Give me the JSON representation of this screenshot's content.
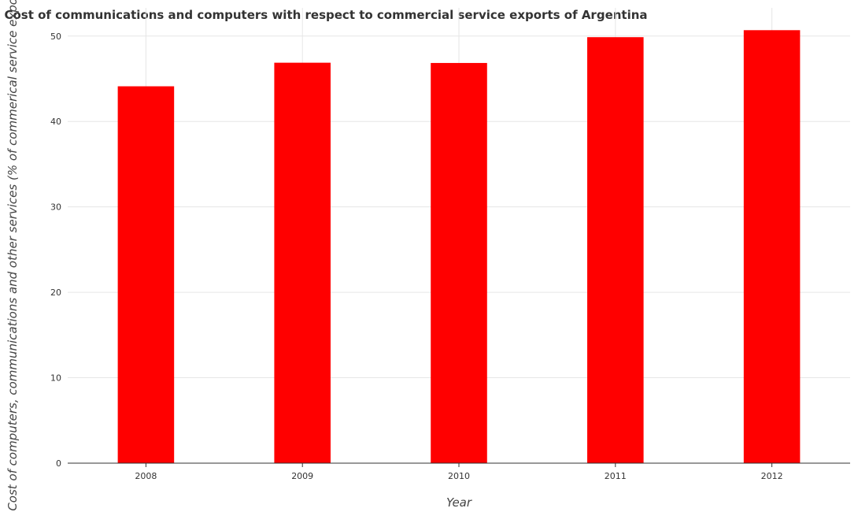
{
  "chart_data": {
    "type": "bar",
    "title": "Cost of communications and computers with respect to commercial service exports of Argentina",
    "xlabel": "Year",
    "ylabel": "Cost of computers, communications and other services (% of commerical service exports)",
    "categories": [
      "2008",
      "2009",
      "2010",
      "2011",
      "2012"
    ],
    "values": [
      44.12,
      46.88,
      46.85,
      49.87,
      50.69
    ],
    "ylim": [
      0,
      53.3
    ],
    "yticks": [
      0,
      10,
      20,
      30,
      40,
      50
    ],
    "ytick_labels": [
      "0",
      "10",
      "20",
      "30",
      "40",
      "50"
    ],
    "grid": true,
    "bar_color": "#ff0000"
  }
}
